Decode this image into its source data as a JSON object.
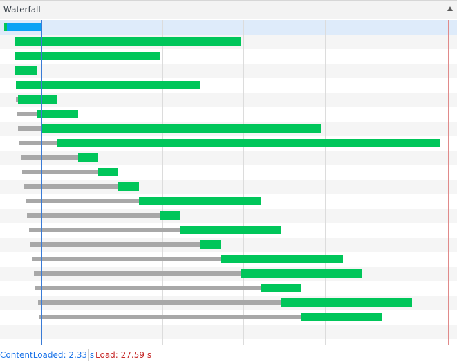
{
  "header": {
    "title": "Waterfall"
  },
  "footer": {
    "dom_content_loaded": "ContentLoaded: 2.33 s",
    "load": "Load: 27.59 s"
  },
  "colors": {
    "download": "#00c65a",
    "selected": "#09a3f5",
    "waiting": "#a8a8a8",
    "dcl_line": "#3a7bd5",
    "load_line": "#e08a8a"
  },
  "waterfall": {
    "rows": [
      {
        "wait_start": 0.25,
        "wait_end": 0.4,
        "end": 2.55,
        "selected": true
      },
      {
        "wait_start": 0.95,
        "wait_end": 0.95,
        "end": 15.05
      },
      {
        "wait_start": 0.95,
        "wait_end": 0.95,
        "end": 9.95
      },
      {
        "wait_start": 0.95,
        "wait_end": 0.95,
        "end": 2.3
      },
      {
        "wait_start": 1.0,
        "wait_end": 1.0,
        "end": 12.5
      },
      {
        "wait_start": 1.0,
        "wait_end": 1.1,
        "end": 3.55
      },
      {
        "wait_start": 1.05,
        "wait_end": 2.3,
        "end": 4.85
      },
      {
        "wait_start": 1.1,
        "wait_end": 2.55,
        "end": 20.0
      },
      {
        "wait_start": 1.2,
        "wait_end": 3.55,
        "end": 27.45
      },
      {
        "wait_start": 1.35,
        "wait_end": 4.85,
        "end": 6.1
      },
      {
        "wait_start": 1.4,
        "wait_end": 6.1,
        "end": 7.35
      },
      {
        "wait_start": 1.5,
        "wait_end": 7.35,
        "end": 8.65
      },
      {
        "wait_start": 1.6,
        "wait_end": 8.65,
        "end": 16.3
      },
      {
        "wait_start": 1.7,
        "wait_end": 9.95,
        "end": 11.2
      },
      {
        "wait_start": 1.8,
        "wait_end": 11.2,
        "end": 17.5
      },
      {
        "wait_start": 1.9,
        "wait_end": 12.5,
        "end": 13.8
      },
      {
        "wait_start": 2.0,
        "wait_end": 13.8,
        "end": 21.4
      },
      {
        "wait_start": 2.1,
        "wait_end": 15.05,
        "end": 22.6
      },
      {
        "wait_start": 2.2,
        "wait_end": 16.3,
        "end": 18.75
      },
      {
        "wait_start": 2.35,
        "wait_end": 17.5,
        "end": 25.7
      },
      {
        "wait_start": 2.45,
        "wait_end": 18.75,
        "end": 23.85
      }
    ]
  }
}
